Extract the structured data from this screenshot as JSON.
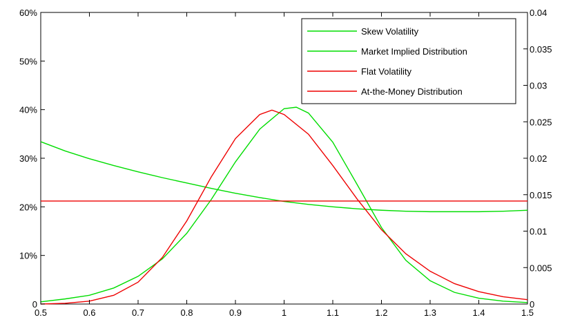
{
  "chart_data": {
    "type": "line",
    "title": "",
    "xlabel": "",
    "ylabel": "",
    "y2label": "",
    "grid": false,
    "legend_position": "top-right",
    "xlim": [
      0.5,
      1.5
    ],
    "ylim": [
      0,
      60
    ],
    "y2lim": [
      0,
      0.04
    ],
    "x_ticks": [
      "0.5",
      "0.6",
      "0.7",
      "0.8",
      "0.9",
      "1",
      "1.1",
      "1.2",
      "1.3",
      "1.4",
      "1.5"
    ],
    "y_ticks": [
      "0",
      "10%",
      "20%",
      "30%",
      "40%",
      "50%",
      "60%"
    ],
    "y2_ticks": [
      "0",
      "0.005",
      "0.01",
      "0.015",
      "0.02",
      "0.025",
      "0.03",
      "0.035",
      "0.04"
    ],
    "series": [
      {
        "name": "Skew Volatility",
        "axis": "left",
        "color": "#00dd00",
        "x": [
          0.5,
          0.55,
          0.6,
          0.65,
          0.7,
          0.75,
          0.8,
          0.85,
          0.9,
          0.95,
          1.0,
          1.05,
          1.1,
          1.15,
          1.2,
          1.25,
          1.3,
          1.35,
          1.4,
          1.45,
          1.5
        ],
        "y": [
          33.4,
          31.5,
          29.9,
          28.5,
          27.2,
          26.0,
          24.9,
          23.8,
          22.8,
          21.9,
          21.1,
          20.5,
          20.0,
          19.6,
          19.3,
          19.1,
          19.0,
          19.0,
          19.0,
          19.1,
          19.3
        ]
      },
      {
        "name": "Market Implied Distribution",
        "axis": "right",
        "color": "#00dd00",
        "x": [
          0.5,
          0.55,
          0.6,
          0.65,
          0.7,
          0.75,
          0.8,
          0.85,
          0.9,
          0.95,
          1.0,
          1.025,
          1.05,
          1.1,
          1.15,
          1.2,
          1.25,
          1.3,
          1.35,
          1.4,
          1.45,
          1.5
        ],
        "y": [
          0.0003,
          0.0007,
          0.0012,
          0.0022,
          0.0038,
          0.0062,
          0.0097,
          0.0143,
          0.0195,
          0.024,
          0.0268,
          0.027,
          0.0262,
          0.0222,
          0.0164,
          0.0105,
          0.006,
          0.0032,
          0.0016,
          0.0008,
          0.0004,
          0.0002
        ]
      },
      {
        "name": "Flat Volatility",
        "axis": "left",
        "color": "#ee0000",
        "x": [
          0.5,
          1.5
        ],
        "y": [
          21.2,
          21.2
        ]
      },
      {
        "name": "At-the-Money Distribution",
        "axis": "right",
        "color": "#ee0000",
        "x": [
          0.5,
          0.55,
          0.6,
          0.65,
          0.7,
          0.75,
          0.8,
          0.85,
          0.9,
          0.95,
          0.975,
          1.0,
          1.05,
          1.1,
          1.15,
          1.2,
          1.25,
          1.3,
          1.35,
          1.4,
          1.45,
          1.5
        ],
        "y": [
          0.0,
          0.0001,
          0.0004,
          0.0012,
          0.003,
          0.0064,
          0.0114,
          0.0174,
          0.0227,
          0.026,
          0.0266,
          0.026,
          0.0233,
          0.019,
          0.0144,
          0.0102,
          0.0069,
          0.0045,
          0.0028,
          0.0017,
          0.001,
          0.0006
        ]
      }
    ]
  }
}
